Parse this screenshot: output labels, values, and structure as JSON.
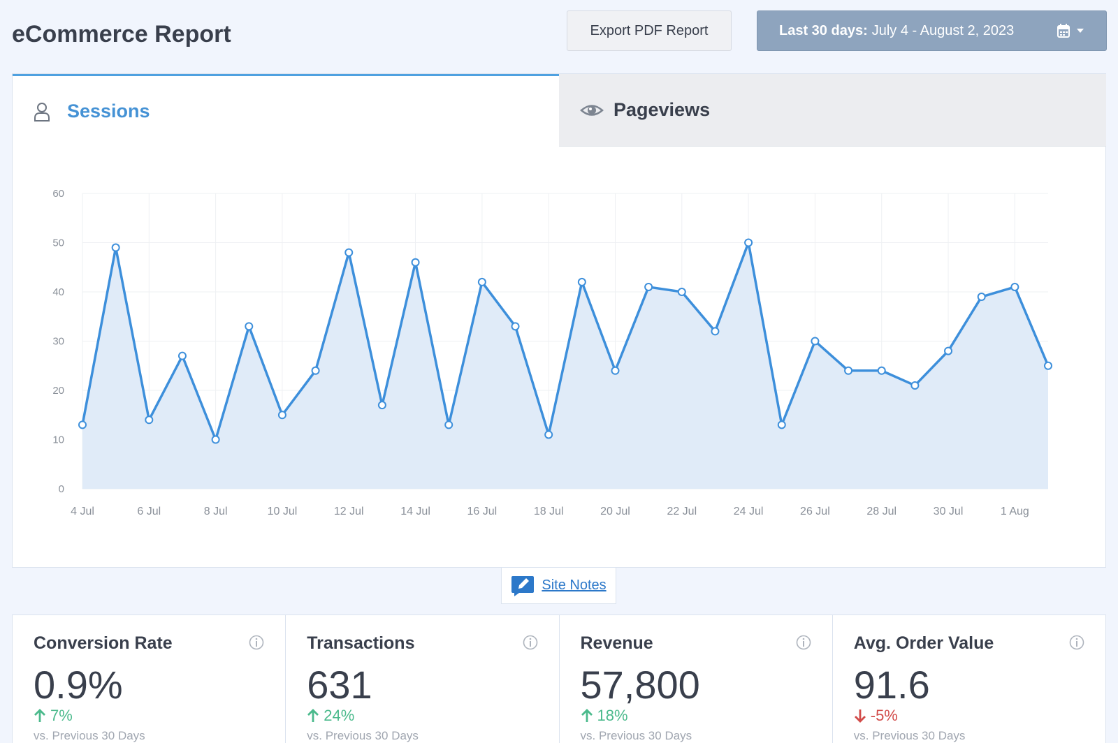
{
  "header": {
    "title": "eCommerce Report",
    "export_label": "Export PDF Report",
    "date_range_prefix": "Last 30 days:",
    "date_range_value": "July 4 - August 2, 2023"
  },
  "tabs": [
    {
      "label": "Sessions",
      "icon": "user-icon",
      "active": true
    },
    {
      "label": "Pageviews",
      "icon": "eye-icon",
      "active": false
    }
  ],
  "site_notes_label": "Site Notes",
  "colors": {
    "accent": "#4592d5",
    "line": "#3d8fdb",
    "fill": "#e0ebf8",
    "up": "#4bba8c",
    "down": "#d24b49"
  },
  "chart_data": {
    "type": "line",
    "title": "",
    "xlabel": "",
    "ylabel": "",
    "ylim": [
      0,
      60
    ],
    "yticks": [
      0,
      10,
      20,
      30,
      40,
      50,
      60
    ],
    "x": [
      "4 Jul",
      "5 Jul",
      "6 Jul",
      "7 Jul",
      "8 Jul",
      "9 Jul",
      "10 Jul",
      "11 Jul",
      "12 Jul",
      "13 Jul",
      "14 Jul",
      "15 Jul",
      "16 Jul",
      "17 Jul",
      "18 Jul",
      "19 Jul",
      "20 Jul",
      "21 Jul",
      "22 Jul",
      "23 Jul",
      "24 Jul",
      "25 Jul",
      "26 Jul",
      "27 Jul",
      "28 Jul",
      "29 Jul",
      "30 Jul",
      "31 Jul",
      "1 Aug",
      "2 Aug"
    ],
    "xtick_labels": [
      "4 Jul",
      "6 Jul",
      "8 Jul",
      "10 Jul",
      "12 Jul",
      "14 Jul",
      "16 Jul",
      "18 Jul",
      "20 Jul",
      "22 Jul",
      "24 Jul",
      "26 Jul",
      "28 Jul",
      "30 Jul",
      "1 Aug"
    ],
    "series": [
      {
        "values": [
          13,
          49,
          14,
          27,
          10,
          33,
          15,
          24,
          48,
          17,
          46,
          13,
          42,
          33,
          11,
          42,
          24,
          41,
          40,
          32,
          50,
          13,
          30,
          24,
          24,
          21,
          28,
          39,
          41,
          25
        ]
      }
    ],
    "grid": true,
    "area_fill": true
  },
  "stats": [
    {
      "label": "Conversion Rate",
      "value": "0.9%",
      "delta": "7%",
      "direction": "up",
      "sub": "vs. Previous 30 Days"
    },
    {
      "label": "Transactions",
      "value": "631",
      "delta": "24%",
      "direction": "up",
      "sub": "vs. Previous 30 Days"
    },
    {
      "label": "Revenue",
      "value": "57,800",
      "delta": "18%",
      "direction": "up",
      "sub": "vs. Previous 30 Days"
    },
    {
      "label": "Avg. Order Value",
      "value": "91.6",
      "delta": "-5%",
      "direction": "down",
      "sub": "vs. Previous 30 Days"
    }
  ]
}
